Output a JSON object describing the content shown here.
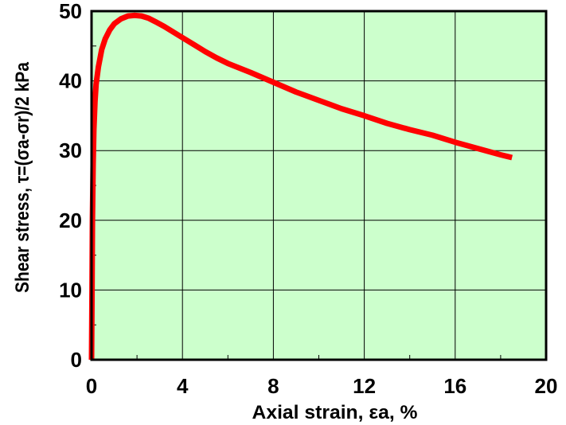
{
  "chart_data": {
    "type": "line",
    "xlabel": "Axial strain, εa, %",
    "ylabel": "Shear stress, τ=(σa-σr)/2 kPa",
    "xlim": [
      0,
      20
    ],
    "ylim": [
      0,
      50
    ],
    "x_ticks": [
      0,
      4,
      8,
      12,
      16,
      20
    ],
    "x_tick_labels": [
      "0",
      "4",
      "8",
      "12",
      "16",
      "20"
    ],
    "y_ticks": [
      0,
      10,
      20,
      30,
      40,
      50
    ],
    "y_tick_labels": [
      "0",
      "10",
      "20",
      "30",
      "40",
      "50"
    ],
    "grid": true,
    "colors": {
      "plot_background": "#ccffcc",
      "line": "#ff0000",
      "grid": "#000000"
    },
    "series": [
      {
        "x": [
          0.0,
          0.02,
          0.04,
          0.07,
          0.1,
          0.15,
          0.2,
          0.3,
          0.45,
          0.6,
          0.8,
          1.0,
          1.3,
          1.6,
          1.9,
          2.2,
          2.5,
          2.8,
          3.2,
          3.6,
          4.0,
          4.5,
          5.0,
          5.5,
          6.0,
          7.0,
          8.0,
          9.0,
          10.0,
          11.0,
          12.0,
          13.0,
          14.0,
          15.0,
          16.0,
          17.0,
          18.0,
          18.5
        ],
        "y": [
          0.0,
          10.0,
          20.0,
          28.0,
          33.0,
          37.0,
          39.5,
          42.0,
          44.5,
          46.0,
          47.3,
          48.2,
          48.9,
          49.3,
          49.4,
          49.3,
          49.0,
          48.5,
          47.8,
          47.0,
          46.2,
          45.2,
          44.2,
          43.3,
          42.5,
          41.2,
          39.8,
          38.4,
          37.2,
          36.0,
          35.0,
          33.9,
          33.0,
          32.2,
          31.2,
          30.3,
          29.4,
          29.0
        ]
      }
    ]
  }
}
